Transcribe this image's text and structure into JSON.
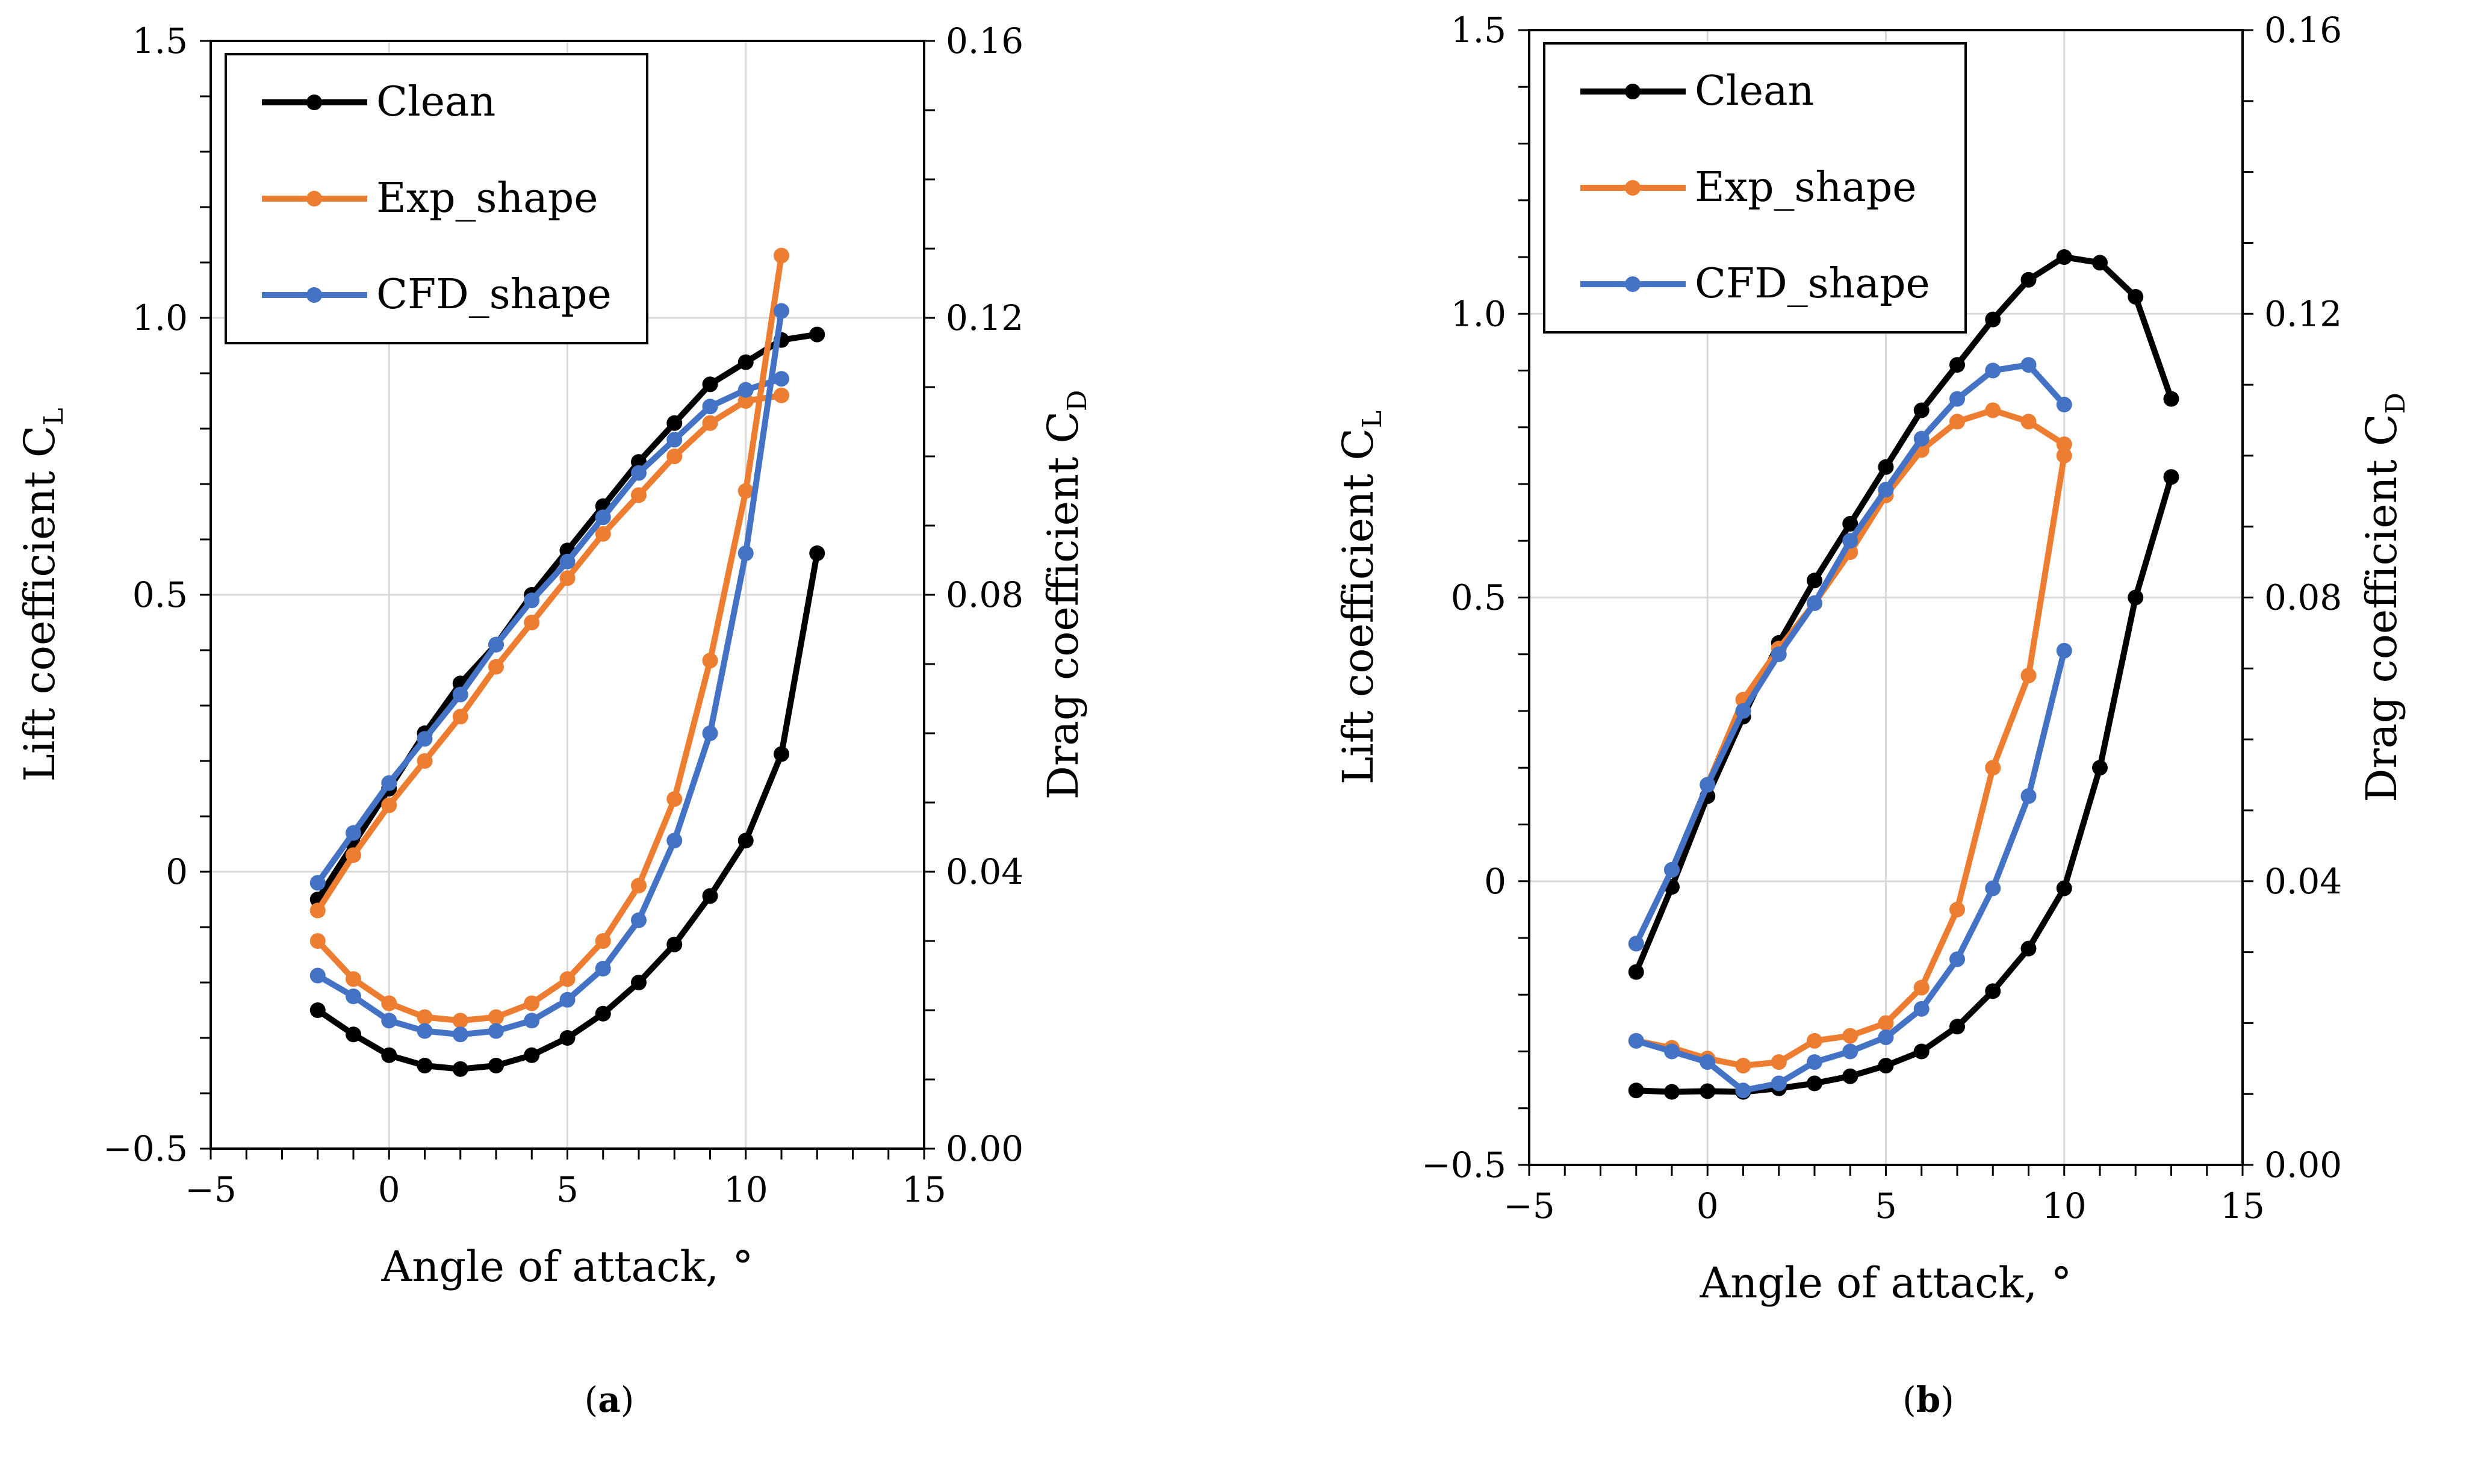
{
  "colors": {
    "Clean": "#000000",
    "Exp_shape": "#ed7d31",
    "CFD_shape": "#4472c4"
  },
  "chart_data": [
    {
      "type": "line",
      "panel_label": "a",
      "xlabel": "Angle of attack, °",
      "ylabel": "Lift coefficient C",
      "ylabel_sub": "L",
      "y2label": "Drag coefficient C",
      "y2label_sub": "D",
      "xlim": [
        -5,
        15
      ],
      "xticks": [
        -5,
        0,
        5,
        10,
        15
      ],
      "xtick_labels": [
        "−5",
        "0",
        "5",
        "10",
        "15"
      ],
      "ylim": [
        -0.5,
        1.5
      ],
      "yticks": [
        -0.5,
        0,
        0.5,
        1.0,
        1.5
      ],
      "ytick_labels": [
        "−0.5",
        "0",
        "0.5",
        "1.0",
        "1.5"
      ],
      "y2lim": [
        0,
        0.16
      ],
      "y2ticks": [
        0,
        0.04,
        0.08,
        0.12,
        0.16
      ],
      "y2tick_labels": [
        "0.00",
        "0.04",
        "0.08",
        "0.12",
        "0.16"
      ],
      "grid": true,
      "legend": "top-left",
      "legend_entries": [
        "Clean",
        "Exp_shape",
        "CFD_shape"
      ],
      "series": [
        {
          "name": "Clean",
          "axis": "left",
          "x": [
            -2,
            -1,
            0,
            1,
            2,
            3,
            4,
            5,
            6,
            7,
            8,
            9,
            10,
            11,
            12
          ],
          "values": [
            -0.05,
            0.05,
            0.15,
            0.25,
            0.34,
            0.41,
            0.5,
            0.58,
            0.66,
            0.74,
            0.81,
            0.88,
            0.92,
            0.96,
            0.97
          ]
        },
        {
          "name": "Exp_shape",
          "axis": "left",
          "x": [
            -2,
            -1,
            0,
            1,
            2,
            3,
            4,
            5,
            6,
            7,
            8,
            9,
            10,
            11
          ],
          "values": [
            -0.07,
            0.03,
            0.12,
            0.2,
            0.28,
            0.37,
            0.45,
            0.53,
            0.61,
            0.68,
            0.75,
            0.81,
            0.85,
            0.86
          ]
        },
        {
          "name": "CFD_shape",
          "axis": "left",
          "x": [
            -2,
            -1,
            0,
            1,
            2,
            3,
            4,
            5,
            6,
            7,
            8,
            9,
            10,
            11
          ],
          "values": [
            -0.02,
            0.07,
            0.16,
            0.24,
            0.32,
            0.41,
            0.49,
            0.56,
            0.64,
            0.72,
            0.78,
            0.84,
            0.87,
            0.89
          ]
        },
        {
          "name": "Clean",
          "axis": "right",
          "x": [
            -2,
            -1,
            0,
            1,
            2,
            3,
            4,
            5,
            6,
            7,
            8,
            9,
            10,
            11,
            12
          ],
          "values": [
            0.02,
            0.0165,
            0.0135,
            0.012,
            0.0115,
            0.012,
            0.0135,
            0.016,
            0.0195,
            0.024,
            0.0295,
            0.0365,
            0.0445,
            0.057,
            0.086
          ]
        },
        {
          "name": "Exp_shape",
          "axis": "right",
          "x": [
            -2,
            -1,
            0,
            1,
            2,
            3,
            4,
            5,
            6,
            7,
            8,
            9,
            10,
            11
          ],
          "values": [
            0.03,
            0.0245,
            0.021,
            0.019,
            0.0185,
            0.019,
            0.021,
            0.0245,
            0.03,
            0.038,
            0.0505,
            0.0705,
            0.095,
            0.129
          ]
        },
        {
          "name": "CFD_shape",
          "axis": "right",
          "x": [
            -2,
            -1,
            0,
            1,
            2,
            3,
            4,
            5,
            6,
            7,
            8,
            9,
            10,
            11
          ],
          "values": [
            0.025,
            0.022,
            0.0185,
            0.017,
            0.0165,
            0.017,
            0.0185,
            0.0215,
            0.026,
            0.033,
            0.0445,
            0.06,
            0.086,
            0.121
          ]
        }
      ]
    },
    {
      "type": "line",
      "panel_label": "b",
      "xlabel": "Angle of attack, °",
      "ylabel": "Lift coefficient C",
      "ylabel_sub": "L",
      "y2label": "Drag coefficient C",
      "y2label_sub": "D",
      "xlim": [
        -5,
        15
      ],
      "xticks": [
        -5,
        0,
        5,
        10,
        15
      ],
      "xtick_labels": [
        "−5",
        "0",
        "5",
        "10",
        "15"
      ],
      "ylim": [
        -0.5,
        1.5
      ],
      "yticks": [
        -0.5,
        0,
        0.5,
        1.0,
        1.5
      ],
      "ytick_labels": [
        "−0.5",
        "0",
        "0.5",
        "1.0",
        "1.5"
      ],
      "y2lim": [
        0,
        0.16
      ],
      "y2ticks": [
        0,
        0.04,
        0.08,
        0.12,
        0.16
      ],
      "y2tick_labels": [
        "0.00",
        "0.04",
        "0.08",
        "0.12",
        "0.16"
      ],
      "grid": true,
      "legend": "top-left",
      "legend_entries": [
        "Clean",
        "Exp_shape",
        "CFD_shape"
      ],
      "series": [
        {
          "name": "Clean",
          "axis": "left",
          "x": [
            -2,
            -1,
            0,
            1,
            2,
            3,
            4,
            5,
            6,
            7,
            8,
            9,
            10,
            11,
            12,
            13
          ],
          "values": [
            -0.16,
            -0.01,
            0.15,
            0.29,
            0.42,
            0.53,
            0.63,
            0.73,
            0.83,
            0.91,
            0.99,
            1.06,
            1.1,
            1.09,
            1.03,
            0.85
          ]
        },
        {
          "name": "Exp_shape",
          "axis": "left",
          "x": [
            -2,
            -1,
            0,
            1,
            2,
            3,
            4,
            5,
            6,
            7,
            8,
            9,
            10
          ],
          "values": [
            -0.11,
            0.02,
            0.17,
            0.32,
            0.41,
            0.49,
            0.58,
            0.68,
            0.76,
            0.81,
            0.83,
            0.81,
            0.77
          ]
        },
        {
          "name": "CFD_shape",
          "axis": "left",
          "x": [
            -2,
            -1,
            0,
            1,
            2,
            3,
            4,
            5,
            6,
            7,
            8,
            9,
            10
          ],
          "values": [
            -0.11,
            0.02,
            0.17,
            0.3,
            0.4,
            0.49,
            0.6,
            0.69,
            0.78,
            0.85,
            0.9,
            0.91,
            0.84
          ]
        },
        {
          "name": "Clean",
          "axis": "right",
          "x": [
            -2,
            -1,
            0,
            1,
            2,
            3,
            4,
            5,
            6,
            7,
            8,
            9,
            10,
            11,
            12,
            13
          ],
          "values": [
            0.0105,
            0.0103,
            0.0104,
            0.0103,
            0.0108,
            0.0115,
            0.0125,
            0.014,
            0.016,
            0.0195,
            0.0245,
            0.0305,
            0.039,
            0.056,
            0.08,
            0.097
          ]
        },
        {
          "name": "Exp_shape",
          "axis": "right",
          "x": [
            -2,
            -1,
            0,
            1,
            2,
            3,
            4,
            5,
            6,
            7,
            8,
            9,
            10
          ],
          "values": [
            0.0175,
            0.0165,
            0.015,
            0.014,
            0.0145,
            0.0175,
            0.0182,
            0.02,
            0.025,
            0.036,
            0.056,
            0.069,
            0.1
          ]
        },
        {
          "name": "CFD_shape",
          "axis": "right",
          "x": [
            -2,
            -1,
            0,
            1,
            2,
            3,
            4,
            5,
            6,
            7,
            8,
            9,
            10
          ],
          "values": [
            0.0175,
            0.016,
            0.0145,
            0.0105,
            0.0115,
            0.0145,
            0.016,
            0.018,
            0.022,
            0.029,
            0.039,
            0.052,
            0.0725
          ]
        }
      ]
    }
  ]
}
